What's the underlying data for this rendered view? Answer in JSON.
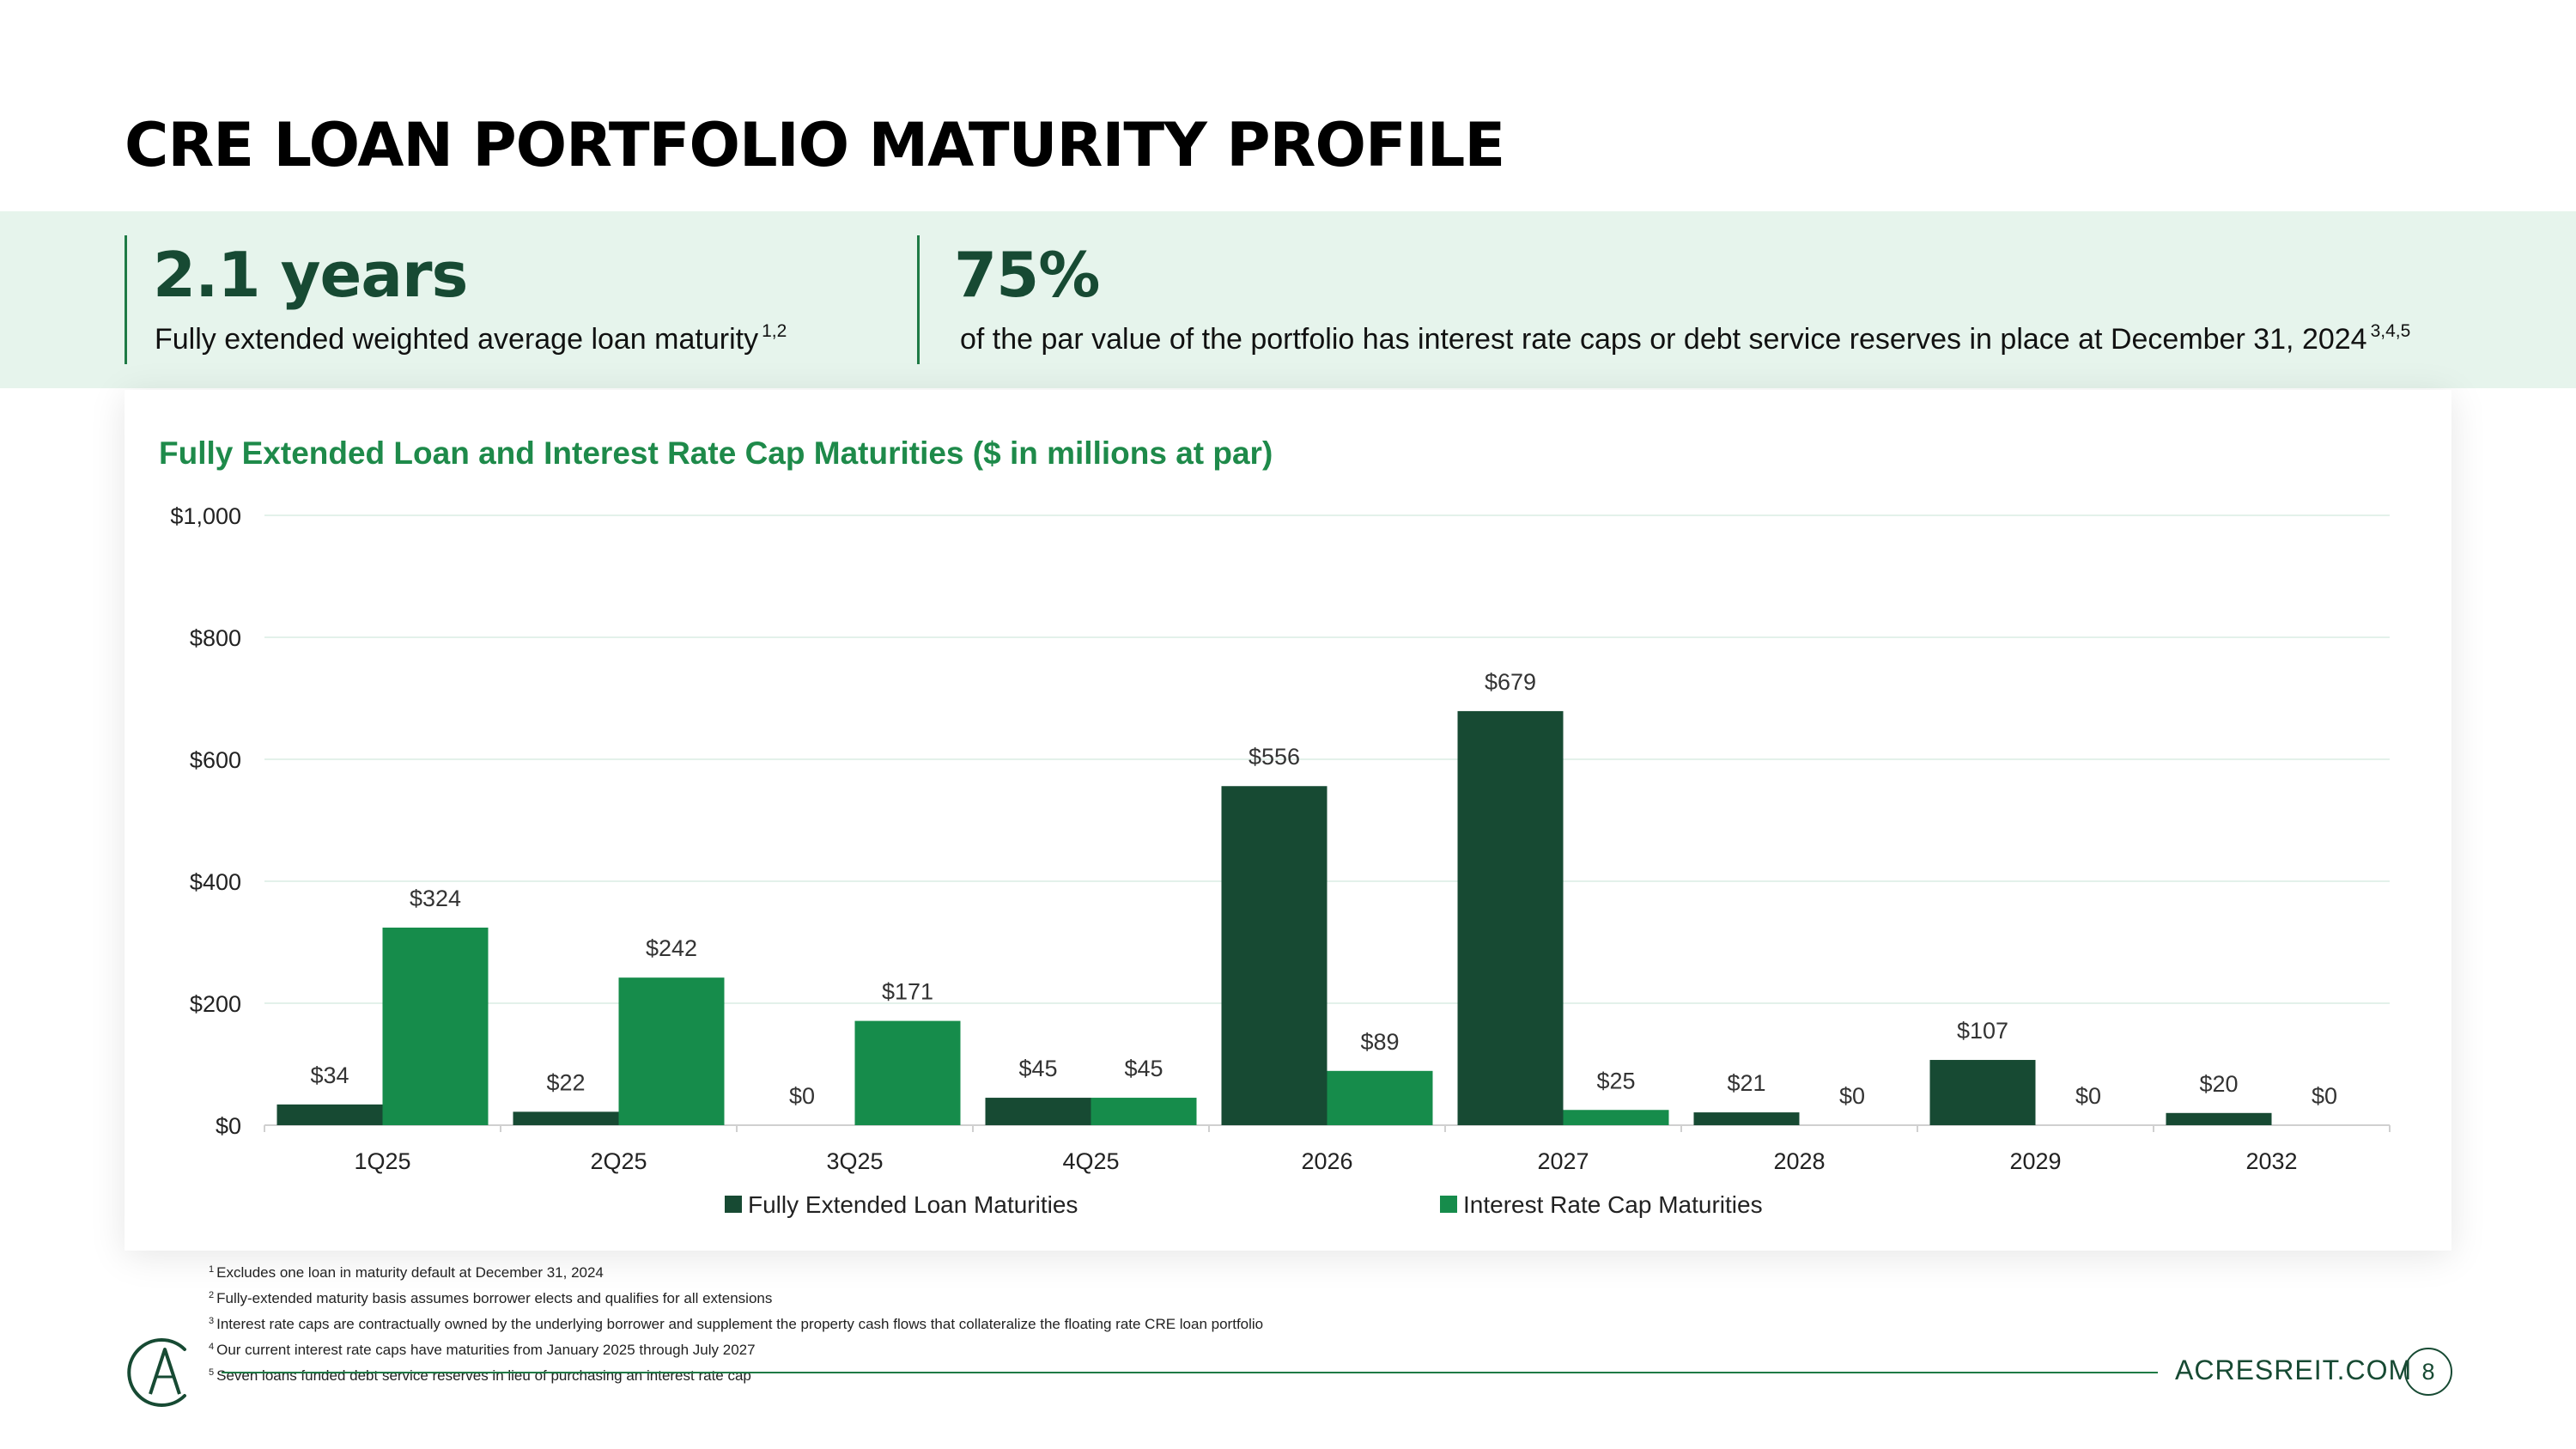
{
  "page": {
    "title": "CRE LOAN PORTFOLIO MATURITY PROFILE",
    "website": "ACRESREIT.COM",
    "page_number": "8"
  },
  "highlights": [
    {
      "value": "2.1 years",
      "label": "Fully extended weighted average loan maturity",
      "note_ref": "1,2"
    },
    {
      "value": "75%",
      "label": "of the par value of the portfolio has interest rate caps or debt service reserves in place at December 31, 2024",
      "note_ref": "3,4,5"
    }
  ],
  "colors": {
    "loan": "#174a33",
    "cap": "#168c4b",
    "accent": "#1e7a45",
    "band": "#e6f4ec",
    "subtitle": "#1e8a4a"
  },
  "chart_data": {
    "type": "bar",
    "title": "Fully Extended Loan and Interest Rate Cap Maturities ($ in millions at par)",
    "xlabel": "",
    "ylabel": "",
    "ylim": [
      0,
      1000
    ],
    "yticks": [
      0,
      200,
      400,
      600,
      800,
      1000
    ],
    "ytick_labels": [
      "$0",
      "$200",
      "$400",
      "$600",
      "$800",
      "$1,000"
    ],
    "grid": true,
    "legend_position": "bottom-center",
    "categories": [
      "1Q25",
      "2Q25",
      "3Q25",
      "4Q25",
      "2026",
      "2027",
      "2028",
      "2029",
      "2032"
    ],
    "series": [
      {
        "name": "Fully Extended Loan Maturities",
        "color": "#174a33",
        "values": [
          34,
          22,
          0,
          45,
          556,
          679,
          21,
          107,
          20
        ],
        "labels": [
          "$34",
          "$22",
          "$0",
          "$45",
          "$556",
          "$679",
          "$21",
          "$107",
          "$20"
        ]
      },
      {
        "name": "Interest Rate Cap Maturities",
        "color": "#168c4b",
        "values": [
          324,
          242,
          171,
          45,
          89,
          25,
          0,
          0,
          0
        ],
        "labels": [
          "$324",
          "$242",
          "$171",
          "$45",
          "$89",
          "$25",
          "$0",
          "$0",
          "$0"
        ]
      }
    ]
  },
  "footnotes": [
    {
      "num": "1",
      "text": "Excludes one loan in maturity default at December 31, 2024"
    },
    {
      "num": "2",
      "text": "Fully-extended maturity basis assumes borrower elects and qualifies for all extensions"
    },
    {
      "num": "3",
      "text": "Interest rate caps are contractually owned by the underlying borrower and supplement the property cash flows that collateralize the floating rate CRE loan portfolio"
    },
    {
      "num": "4",
      "text": "Our current interest rate caps have maturities from January 2025 through July 2027"
    },
    {
      "num": "5",
      "text": "Seven loans funded debt service reserves in lieu of purchasing an interest rate cap"
    }
  ],
  "logo": {
    "icon": "acres-monogram-logo",
    "letters": "AC"
  }
}
